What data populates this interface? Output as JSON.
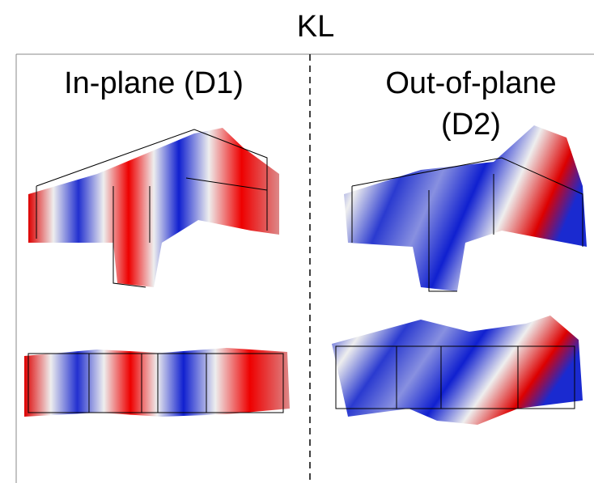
{
  "title": "KL",
  "panels": [
    {
      "label_lines": [
        "In-plane (D1)"
      ]
    },
    {
      "label_lines": [
        "Out-of-plane",
        "(D2)"
      ]
    }
  ]
}
